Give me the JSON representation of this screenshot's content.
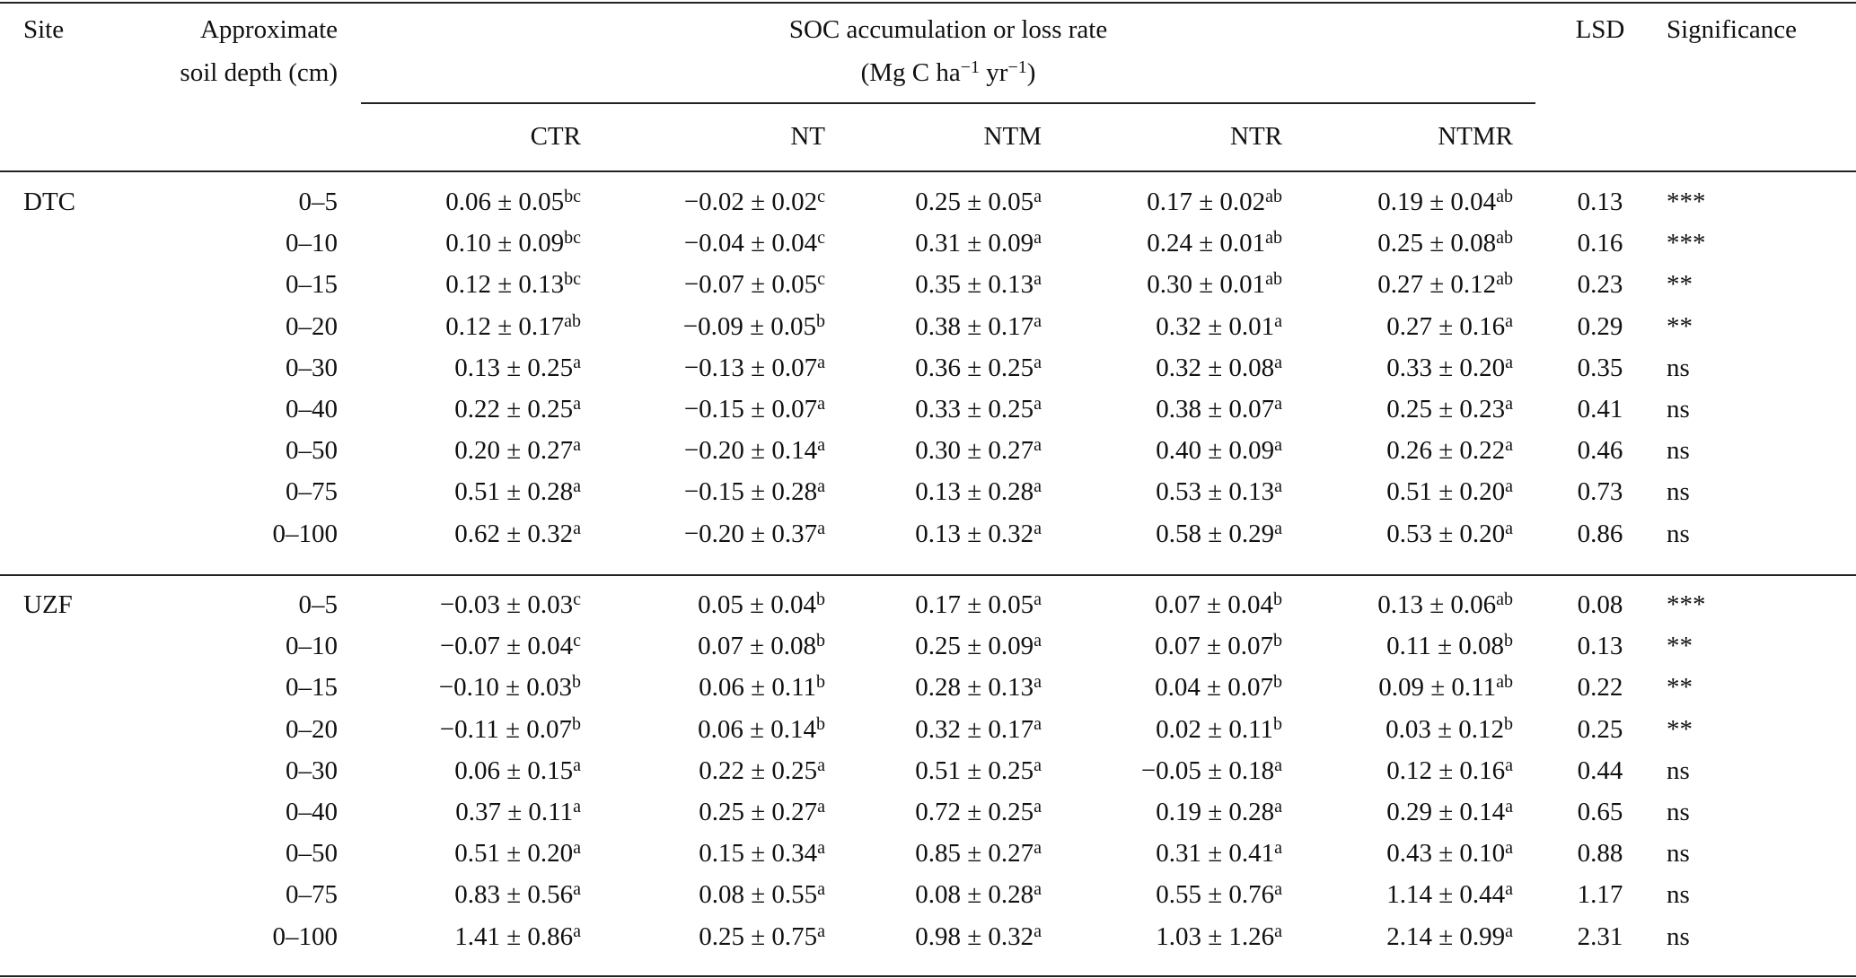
{
  "header": {
    "site": "Site",
    "depth": [
      "Approximate",
      "soil depth (cm)"
    ],
    "rate": "SOC accumulation or loss rate",
    "unit": [
      "(Mg C ha",
      "−1",
      "yr",
      "−1",
      ")"
    ],
    "treatments": [
      "CTR",
      "NT",
      "NTM",
      "NTR",
      "NTMR"
    ],
    "lsd": "LSD",
    "significance": "Significance"
  },
  "groups": [
    {
      "site": "DTC",
      "rows": [
        {
          "depth": "0–5",
          "cells": [
            [
              "0.06 ± 0.05",
              "bc"
            ],
            [
              "−0.02 ± 0.02",
              "c"
            ],
            [
              "0.25 ± 0.05",
              "a"
            ],
            [
              "0.17 ± 0.02",
              "ab"
            ],
            [
              "0.19 ± 0.04",
              "ab"
            ]
          ],
          "lsd": "0.13",
          "sig": "***"
        },
        {
          "depth": "0–10",
          "cells": [
            [
              "0.10 ± 0.09",
              "bc"
            ],
            [
              "−0.04 ± 0.04",
              "c"
            ],
            [
              "0.31 ± 0.09",
              "a"
            ],
            [
              "0.24 ± 0.01",
              "ab"
            ],
            [
              "0.25 ± 0.08",
              "ab"
            ]
          ],
          "lsd": "0.16",
          "sig": "***"
        },
        {
          "depth": "0–15",
          "cells": [
            [
              "0.12 ± 0.13",
              "bc"
            ],
            [
              "−0.07 ± 0.05",
              "c"
            ],
            [
              "0.35 ± 0.13",
              "a"
            ],
            [
              "0.30 ± 0.01",
              "ab"
            ],
            [
              "0.27 ± 0.12",
              "ab"
            ]
          ],
          "lsd": "0.23",
          "sig": "**"
        },
        {
          "depth": "0–20",
          "cells": [
            [
              "0.12 ± 0.17",
              "ab"
            ],
            [
              "−0.09 ± 0.05",
              "b"
            ],
            [
              "0.38 ± 0.17",
              "a"
            ],
            [
              "0.32 ± 0.01",
              "a"
            ],
            [
              "0.27 ± 0.16",
              "a"
            ]
          ],
          "lsd": "0.29",
          "sig": "**"
        },
        {
          "depth": "0–30",
          "cells": [
            [
              "0.13 ± 0.25",
              "a"
            ],
            [
              "−0.13 ± 0.07",
              "a"
            ],
            [
              "0.36 ± 0.25",
              "a"
            ],
            [
              "0.32 ± 0.08",
              "a"
            ],
            [
              "0.33 ± 0.20",
              "a"
            ]
          ],
          "lsd": "0.35",
          "sig": "ns"
        },
        {
          "depth": "0–40",
          "cells": [
            [
              "0.22 ± 0.25",
              "a"
            ],
            [
              "−0.15 ± 0.07",
              "a"
            ],
            [
              "0.33 ± 0.25",
              "a"
            ],
            [
              "0.38 ± 0.07",
              "a"
            ],
            [
              "0.25 ± 0.23",
              "a"
            ]
          ],
          "lsd": "0.41",
          "sig": "ns"
        },
        {
          "depth": "0–50",
          "cells": [
            [
              "0.20 ± 0.27",
              "a"
            ],
            [
              "−0.20 ± 0.14",
              "a"
            ],
            [
              "0.30 ± 0.27",
              "a"
            ],
            [
              "0.40 ± 0.09",
              "a"
            ],
            [
              "0.26 ± 0.22",
              "a"
            ]
          ],
          "lsd": "0.46",
          "sig": "ns"
        },
        {
          "depth": "0–75",
          "cells": [
            [
              "0.51 ± 0.28",
              "a"
            ],
            [
              "−0.15 ± 0.28",
              "a"
            ],
            [
              "0.13 ± 0.28",
              "a"
            ],
            [
              "0.53 ± 0.13",
              "a"
            ],
            [
              "0.51 ± 0.20",
              "a"
            ]
          ],
          "lsd": "0.73",
          "sig": "ns"
        },
        {
          "depth": "0–100",
          "cells": [
            [
              "0.62 ± 0.32",
              "a"
            ],
            [
              "−0.20 ± 0.37",
              "a"
            ],
            [
              "0.13 ± 0.32",
              "a"
            ],
            [
              "0.58 ± 0.29",
              "a"
            ],
            [
              "0.53 ± 0.20",
              "a"
            ]
          ],
          "lsd": "0.86",
          "sig": "ns"
        }
      ]
    },
    {
      "site": "UZF",
      "rows": [
        {
          "depth": "0–5",
          "cells": [
            [
              "−0.03 ± 0.03",
              "c"
            ],
            [
              "0.05 ± 0.04",
              "b"
            ],
            [
              "0.17 ± 0.05",
              "a"
            ],
            [
              "0.07 ± 0.04",
              "b"
            ],
            [
              "0.13 ± 0.06",
              "ab"
            ]
          ],
          "lsd": "0.08",
          "sig": "***"
        },
        {
          "depth": "0–10",
          "cells": [
            [
              "−0.07 ± 0.04",
              "c"
            ],
            [
              "0.07 ± 0.08",
              "b"
            ],
            [
              "0.25 ± 0.09",
              "a"
            ],
            [
              "0.07 ± 0.07",
              "b"
            ],
            [
              "0.11 ± 0.08",
              "b"
            ]
          ],
          "lsd": "0.13",
          "sig": "**"
        },
        {
          "depth": "0–15",
          "cells": [
            [
              "−0.10 ± 0.03",
              "b"
            ],
            [
              "0.06 ± 0.11",
              "b"
            ],
            [
              "0.28 ± 0.13",
              "a"
            ],
            [
              "0.04 ± 0.07",
              "b"
            ],
            [
              "0.09 ± 0.11",
              "ab"
            ]
          ],
          "lsd": "0.22",
          "sig": "**"
        },
        {
          "depth": "0–20",
          "cells": [
            [
              "−0.11 ± 0.07",
              "b"
            ],
            [
              "0.06 ± 0.14",
              "b"
            ],
            [
              "0.32 ± 0.17",
              "a"
            ],
            [
              "0.02 ± 0.11",
              "b"
            ],
            [
              "0.03 ± 0.12",
              "b"
            ]
          ],
          "lsd": "0.25",
          "sig": "**"
        },
        {
          "depth": "0–30",
          "cells": [
            [
              "0.06 ± 0.15",
              "a"
            ],
            [
              "0.22 ± 0.25",
              "a"
            ],
            [
              "0.51 ± 0.25",
              "a"
            ],
            [
              "−0.05 ± 0.18",
              "a"
            ],
            [
              "0.12 ± 0.16",
              "a"
            ]
          ],
          "lsd": "0.44",
          "sig": "ns"
        },
        {
          "depth": "0–40",
          "cells": [
            [
              "0.37 ± 0.11",
              "a"
            ],
            [
              "0.25 ± 0.27",
              "a"
            ],
            [
              "0.72 ± 0.25",
              "a"
            ],
            [
              "0.19 ± 0.28",
              "a"
            ],
            [
              "0.29 ± 0.14",
              "a"
            ]
          ],
          "lsd": "0.65",
          "sig": "ns"
        },
        {
          "depth": "0–50",
          "cells": [
            [
              "0.51 ± 0.20",
              "a"
            ],
            [
              "0.15 ± 0.34",
              "a"
            ],
            [
              "0.85 ± 0.27",
              "a"
            ],
            [
              "0.31 ± 0.41",
              "a"
            ],
            [
              "0.43 ± 0.10",
              "a"
            ]
          ],
          "lsd": "0.88",
          "sig": "ns"
        },
        {
          "depth": "0–75",
          "cells": [
            [
              "0.83 ± 0.56",
              "a"
            ],
            [
              "0.08 ± 0.55",
              "a"
            ],
            [
              "0.08 ± 0.28",
              "a"
            ],
            [
              "0.55 ± 0.76",
              "a"
            ],
            [
              "1.14 ± 0.44",
              "a"
            ]
          ],
          "lsd": "1.17",
          "sig": "ns"
        },
        {
          "depth": "0–100",
          "cells": [
            [
              "1.41 ± 0.86",
              "a"
            ],
            [
              "0.25 ± 0.75",
              "a"
            ],
            [
              "0.98 ± 0.32",
              "a"
            ],
            [
              "1.03 ± 1.26",
              "a"
            ],
            [
              "2.14 ± 0.99",
              "a"
            ]
          ],
          "lsd": "2.31",
          "sig": "ns"
        }
      ]
    }
  ]
}
